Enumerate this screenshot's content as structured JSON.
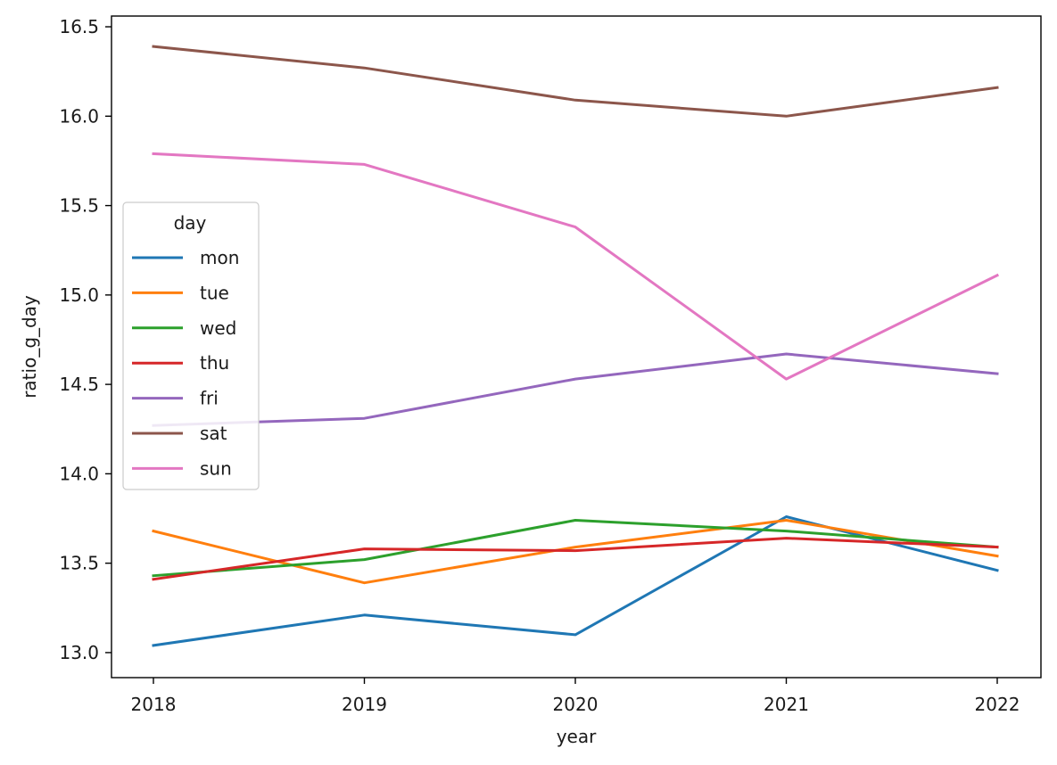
{
  "chart_data": {
    "type": "line",
    "xlabel": "year",
    "ylabel": "ratio_g_day",
    "x": [
      2018,
      2019,
      2020,
      2021,
      2022
    ],
    "x_tick_labels": [
      "2018",
      "2019",
      "2020",
      "2021",
      "2022"
    ],
    "xlim": [
      2017.8,
      2022.2
    ],
    "ylim": [
      12.86,
      16.56
    ],
    "y_ticks": [
      13.0,
      13.5,
      14.0,
      14.5,
      15.0,
      15.5,
      16.0,
      16.5
    ],
    "y_tick_labels": [
      "13.0",
      "13.5",
      "14.0",
      "14.5",
      "15.0",
      "15.5",
      "16.0",
      "16.5"
    ],
    "grid": false,
    "legend": {
      "title": "day",
      "placement": "center-left"
    },
    "series": [
      {
        "name": "mon",
        "color": "#1f77b4",
        "values": [
          13.04,
          13.21,
          13.1,
          13.76,
          13.46
        ]
      },
      {
        "name": "tue",
        "color": "#ff7f0e",
        "values": [
          13.68,
          13.39,
          13.59,
          13.74,
          13.54
        ]
      },
      {
        "name": "wed",
        "color": "#2ca02c",
        "values": [
          13.43,
          13.52,
          13.74,
          13.68,
          13.59
        ]
      },
      {
        "name": "thu",
        "color": "#d62728",
        "values": [
          13.41,
          13.58,
          13.57,
          13.64,
          13.59
        ]
      },
      {
        "name": "fri",
        "color": "#9467bd",
        "values": [
          14.27,
          14.31,
          14.53,
          14.67,
          14.56
        ]
      },
      {
        "name": "sat",
        "color": "#8c564b",
        "values": [
          16.39,
          16.27,
          16.09,
          16.0,
          16.16
        ]
      },
      {
        "name": "sun",
        "color": "#e377c2",
        "values": [
          15.79,
          15.73,
          15.38,
          14.53,
          15.11
        ]
      }
    ]
  }
}
